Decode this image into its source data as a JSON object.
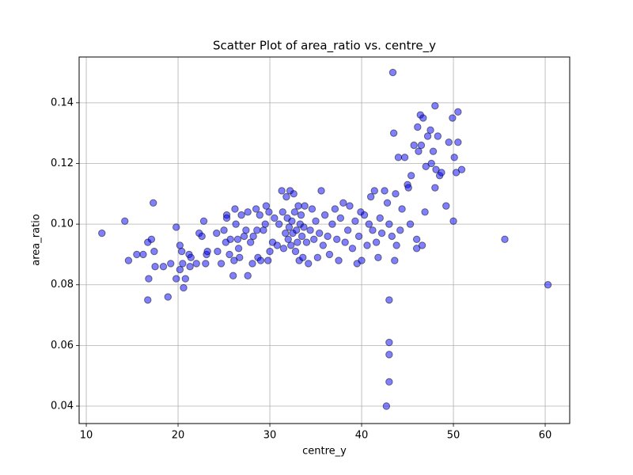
{
  "chart_data": {
    "type": "scatter",
    "title": "Scatter Plot of area_ratio vs. centre_y",
    "xlabel": "centre_y",
    "ylabel": "area_ratio",
    "color": "#0000ff",
    "edgecolor": "#000000",
    "alpha": 0.5,
    "grid": true,
    "xlim": [
      9.22,
      62.67
    ],
    "ylim": [
      0.03426,
      0.1551
    ],
    "xticks": [
      10,
      20,
      30,
      40,
      50,
      60
    ],
    "yticks": [
      0.04,
      0.06,
      0.08,
      {
        "value": 0.1,
        "label": "0.10"
      },
      0.12,
      0.14
    ],
    "x": [
      11.7,
      14.2,
      14.6,
      15.5,
      16.2,
      16.7,
      16.7,
      16.8,
      17.1,
      17.3,
      17.5,
      17.4,
      18.4,
      18.9,
      19.2,
      19.8,
      19.8,
      20.2,
      20.2,
      20.6,
      20.4,
      20.5,
      20.8,
      21.2,
      21.3,
      21.4,
      22.0,
      22.3,
      22.6,
      22.8,
      23.0,
      23.1,
      23.2,
      24.2,
      24.3,
      24.7,
      25.0,
      25.2,
      25.3,
      25.3,
      25.6,
      25.7,
      26.0,
      26.1,
      26.2,
      26.3,
      26.5,
      26.6,
      26.7,
      26.9,
      27.2,
      27.4,
      27.6,
      27.6,
      27.9,
      28.1,
      28.2,
      28.5,
      28.6,
      28.7,
      28.9,
      29.0,
      29.3,
      29.5,
      29.6,
      29.9,
      29.8,
      30.0,
      30.3,
      30.5,
      30.8,
      31.0,
      31.3,
      31.4,
      31.5,
      31.7,
      31.8,
      31.9,
      32.0,
      32.1,
      32.2,
      32.3,
      32.4,
      32.5,
      32.6,
      32.7,
      32.8,
      32.9,
      33.0,
      33.1,
      33.2,
      33.3,
      33.4,
      33.5,
      33.6,
      33.7,
      33.8,
      34.0,
      34.2,
      34.4,
      34.6,
      34.8,
      35.0,
      35.2,
      35.4,
      35.6,
      35.8,
      36.0,
      36.3,
      36.5,
      36.8,
      37.1,
      37.3,
      37.5,
      37.7,
      38.0,
      38.2,
      38.5,
      38.7,
      39.0,
      39.3,
      39.5,
      39.7,
      39.9,
      40.0,
      40.3,
      40.6,
      40.8,
      41.0,
      41.2,
      41.4,
      41.6,
      41.8,
      42.0,
      42.2,
      42.5,
      42.7,
      42.8,
      43.0,
      43.0,
      43.0,
      43.0,
      43.0,
      43.3,
      43.4,
      43.5,
      43.6,
      43.7,
      43.8,
      44.0,
      44.2,
      44.4,
      44.7,
      45.0,
      45.1,
      45.3,
      45.4,
      45.7,
      46.0,
      46.0,
      46.1,
      46.2,
      46.4,
      46.5,
      46.6,
      46.7,
      46.9,
      47.0,
      47.2,
      47.5,
      47.6,
      47.8,
      48.0,
      48.0,
      48.1,
      48.3,
      48.5,
      48.7,
      49.2,
      49.5,
      49.9,
      50.0,
      50.1,
      50.3,
      50.5,
      50.5,
      50.9,
      55.6,
      60.3
    ],
    "values": [
      0.097,
      0.101,
      0.088,
      0.09,
      0.09,
      0.094,
      0.075,
      0.082,
      0.095,
      0.107,
      0.086,
      0.091,
      0.086,
      0.076,
      0.087,
      0.099,
      0.082,
      0.085,
      0.093,
      0.079,
      0.091,
      0.087,
      0.082,
      0.09,
      0.086,
      0.089,
      0.087,
      0.097,
      0.096,
      0.101,
      0.087,
      0.09,
      0.091,
      0.097,
      0.091,
      0.087,
      0.098,
      0.094,
      0.103,
      0.102,
      0.09,
      0.095,
      0.083,
      0.088,
      0.105,
      0.1,
      0.095,
      0.092,
      0.089,
      0.103,
      0.096,
      0.098,
      0.104,
      0.083,
      0.094,
      0.087,
      0.096,
      0.105,
      0.098,
      0.089,
      0.103,
      0.088,
      0.098,
      0.1,
      0.106,
      0.104,
      0.088,
      0.091,
      0.094,
      0.102,
      0.093,
      0.1,
      0.111,
      0.104,
      0.092,
      0.097,
      0.109,
      0.102,
      0.095,
      0.099,
      0.111,
      0.093,
      0.101,
      0.097,
      0.11,
      0.104,
      0.091,
      0.098,
      0.094,
      0.106,
      0.088,
      0.1,
      0.103,
      0.096,
      0.089,
      0.099,
      0.106,
      0.094,
      0.087,
      0.098,
      0.105,
      0.095,
      0.101,
      0.089,
      0.097,
      0.111,
      0.093,
      0.103,
      0.096,
      0.09,
      0.1,
      0.105,
      0.095,
      0.088,
      0.102,
      0.107,
      0.094,
      0.098,
      0.106,
      0.092,
      0.101,
      0.087,
      0.096,
      0.104,
      0.088,
      0.103,
      0.093,
      0.1,
      0.109,
      0.098,
      0.111,
      0.094,
      0.089,
      0.102,
      0.097,
      0.111,
      0.04,
      0.107,
      0.075,
      0.061,
      0.057,
      0.048,
      0.1,
      0.096,
      0.15,
      0.13,
      0.088,
      0.11,
      0.093,
      0.122,
      0.098,
      0.105,
      0.122,
      0.113,
      0.112,
      0.1,
      0.116,
      0.126,
      0.092,
      0.095,
      0.132,
      0.124,
      0.136,
      0.126,
      0.093,
      0.135,
      0.104,
      0.119,
      0.129,
      0.131,
      0.12,
      0.124,
      0.112,
      0.139,
      0.118,
      0.129,
      0.116,
      0.117,
      0.106,
      0.127,
      0.135,
      0.101,
      0.122,
      0.117,
      0.137,
      0.127,
      0.118,
      0.095,
      0.08
    ]
  }
}
